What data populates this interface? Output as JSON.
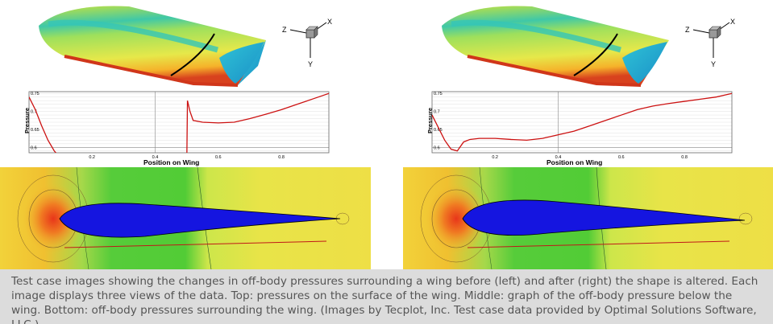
{
  "panels": [
    {
      "id": "before",
      "triad": {
        "z": "Z",
        "x": "X",
        "y": "Y"
      },
      "plot": {
        "ylabel": "Pressure",
        "xlabel": "Position on Wing",
        "yticks": [
          "0.75",
          "0.7",
          "0.65",
          "0.6"
        ],
        "xticks": [
          "0.2",
          "0.4",
          "0.6",
          "0.8"
        ]
      }
    },
    {
      "id": "after",
      "triad": {
        "z": "Z",
        "x": "X",
        "y": "Y"
      },
      "plot": {
        "ylabel": "Pressure",
        "xlabel": "Position on Wing",
        "yticks": [
          "0.75",
          "0.7",
          "0.65",
          "0.6"
        ],
        "xticks": [
          "0.2",
          "0.4",
          "0.6",
          "0.8"
        ]
      }
    }
  ],
  "caption": "Test case images showing the changes in off-body pressures surrounding a wing before (left) and after (right) the shape is altered. Each image displays three views of the data. Top: pressures on the surface of the wing. Middle: graph of the off-body pressure below the wing. Bottom: off-body pressures surrounding the wing. (Images by Tecplot, Inc. Test case data provided by Optimal Solutions Software, LLC.)",
  "chart_data": [
    {
      "type": "line",
      "xlabel": "Position on Wing",
      "ylabel": "Pressure",
      "xlim": [
        0,
        0.95
      ],
      "ylim": [
        0.585,
        0.755
      ],
      "grid": true,
      "series": [
        {
          "x": [
            0.0,
            0.02,
            0.04,
            0.06,
            0.08,
            0.1,
            0.5,
            0.502,
            0.51,
            0.52,
            0.55,
            0.6,
            0.65,
            0.7,
            0.75,
            0.8,
            0.85,
            0.9,
            0.95
          ],
          "y": [
            0.74,
            0.705,
            0.66,
            0.62,
            0.59,
            0.57,
            0.57,
            0.73,
            0.7,
            0.675,
            0.67,
            0.668,
            0.67,
            0.68,
            0.692,
            0.705,
            0.72,
            0.735,
            0.75
          ]
        }
      ]
    },
    {
      "type": "line",
      "xlabel": "Position on Wing",
      "ylabel": "Pressure",
      "xlim": [
        0,
        0.95
      ],
      "ylim": [
        0.585,
        0.755
      ],
      "grid": true,
      "series": [
        {
          "x": [
            0.0,
            0.02,
            0.04,
            0.06,
            0.08,
            0.1,
            0.12,
            0.15,
            0.2,
            0.25,
            0.3,
            0.35,
            0.4,
            0.45,
            0.5,
            0.55,
            0.6,
            0.65,
            0.7,
            0.75,
            0.8,
            0.85,
            0.9,
            0.95
          ],
          "y": [
            0.69,
            0.655,
            0.62,
            0.595,
            0.59,
            0.615,
            0.622,
            0.625,
            0.625,
            0.622,
            0.62,
            0.625,
            0.635,
            0.645,
            0.66,
            0.675,
            0.69,
            0.705,
            0.715,
            0.722,
            0.728,
            0.734,
            0.74,
            0.75
          ]
        }
      ]
    }
  ]
}
